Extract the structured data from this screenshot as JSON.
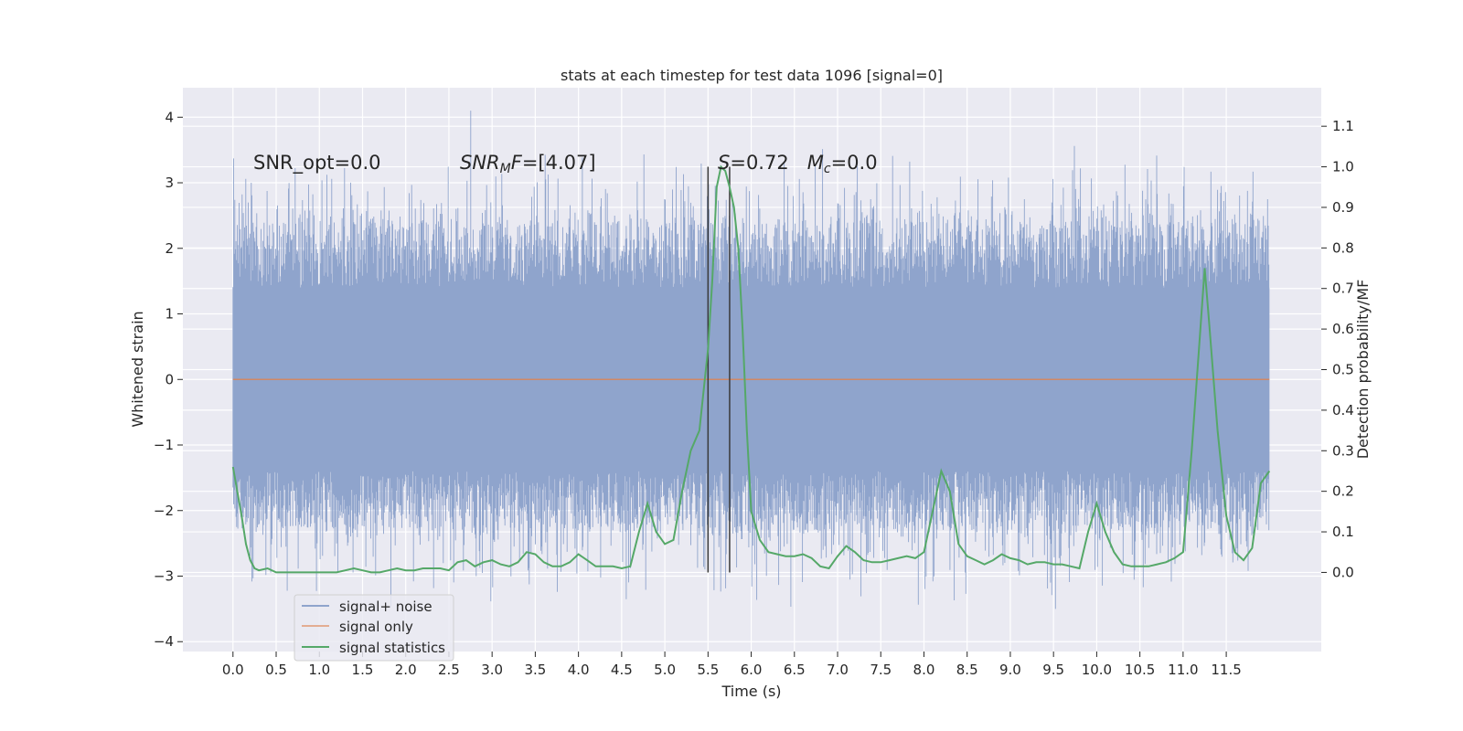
{
  "chart_data": {
    "type": "line",
    "title": "stats at each timestep for test data 1096 [signal=0]",
    "xlabel": "Time (s)",
    "ylabel_left": "Whitened strain",
    "ylabel_right": "Detection probability/MF",
    "xlim": [
      -0.58,
      12.6
    ],
    "ylim_left": [
      -4.15,
      4.45
    ],
    "ylim_right": [
      -0.195,
      1.195
    ],
    "x_ticks": [
      0,
      0.5,
      1,
      1.5,
      2,
      2.5,
      3,
      3.5,
      4,
      4.5,
      5,
      5.5,
      6,
      6.5,
      7,
      7.5,
      8,
      8.5,
      9,
      9.5,
      10,
      10.5,
      11,
      11.5
    ],
    "x_tick_labels": [
      "0.0",
      "0.5",
      "1.0",
      "1.5",
      "2.0",
      "2.5",
      "3.0",
      "3.5",
      "4.0",
      "4.5",
      "5.0",
      "5.5",
      "6.0",
      "6.5",
      "7.0",
      "7.5",
      "8.0",
      "8.5",
      "9.0",
      "9.5",
      "10.0",
      "10.5",
      "11.0",
      "11.5"
    ],
    "y_ticks_left": [
      4,
      3,
      2,
      1,
      0,
      -1,
      -2,
      -3,
      -4
    ],
    "y_tick_labels_left": [
      "4",
      "3",
      "2",
      "1",
      "0",
      "−1",
      "−2",
      "−3",
      "−4"
    ],
    "y_ticks_right": [
      1.1,
      1.0,
      0.9,
      0.8,
      0.7,
      0.6,
      0.5,
      0.4,
      0.3,
      0.2,
      0.1,
      0.0
    ],
    "y_tick_labels_right": [
      "1.1",
      "1.0",
      "0.9",
      "0.8",
      "0.7",
      "0.6",
      "0.5",
      "0.4",
      "0.3",
      "0.2",
      "0.1",
      "0.0"
    ],
    "grid": true,
    "legend_position": "lower-left",
    "series": [
      {
        "name": "signal+ noise",
        "axis": "left",
        "color": "#8fa4cc",
        "kind": "noise-band",
        "x_range": [
          0,
          12.0
        ],
        "core_band": [
          -1.4,
          1.4
        ],
        "typical_peak": [
          -2.3,
          2.4
        ],
        "extrema": {
          "max": 4.1,
          "max_at": 2.75,
          "min": -3.5,
          "min_at": 9.52
        }
      },
      {
        "name": "signal only",
        "axis": "left",
        "color": "#dd8452",
        "x": [
          0,
          12.0
        ],
        "values": [
          0,
          0
        ]
      },
      {
        "name": "signal statistics",
        "axis": "right",
        "color": "#55a868",
        "x": [
          0,
          0.1,
          0.15,
          0.2,
          0.25,
          0.3,
          0.4,
          0.5,
          0.6,
          0.7,
          0.8,
          0.9,
          1.0,
          1.1,
          1.2,
          1.3,
          1.4,
          1.5,
          1.6,
          1.7,
          1.8,
          1.9,
          2.0,
          2.1,
          2.2,
          2.3,
          2.4,
          2.5,
          2.6,
          2.7,
          2.8,
          2.9,
          3.0,
          3.1,
          3.2,
          3.3,
          3.4,
          3.5,
          3.6,
          3.7,
          3.8,
          3.9,
          4.0,
          4.1,
          4.2,
          4.3,
          4.4,
          4.5,
          4.6,
          4.7,
          4.8,
          4.9,
          5.0,
          5.1,
          5.2,
          5.3,
          5.4,
          5.5,
          5.55,
          5.6,
          5.65,
          5.7,
          5.75,
          5.8,
          5.85,
          5.9,
          5.95,
          6.0,
          6.1,
          6.2,
          6.3,
          6.4,
          6.5,
          6.6,
          6.7,
          6.8,
          6.9,
          7.0,
          7.1,
          7.2,
          7.3,
          7.4,
          7.5,
          7.6,
          7.7,
          7.8,
          7.9,
          8.0,
          8.1,
          8.2,
          8.3,
          8.4,
          8.5,
          8.6,
          8.7,
          8.8,
          8.9,
          9.0,
          9.1,
          9.2,
          9.3,
          9.4,
          9.5,
          9.6,
          9.7,
          9.8,
          9.9,
          10.0,
          10.1,
          10.2,
          10.3,
          10.4,
          10.5,
          10.6,
          10.7,
          10.8,
          10.9,
          11.0,
          11.1,
          11.2,
          11.25,
          11.3,
          11.4,
          11.5,
          11.6,
          11.7,
          11.8,
          11.9,
          12.0
        ],
        "values": [
          0.26,
          0.14,
          0.07,
          0.03,
          0.01,
          0.005,
          0.01,
          0.0,
          0.0,
          0.0,
          0.0,
          0.0,
          0.0,
          0.0,
          0.0,
          0.005,
          0.01,
          0.005,
          0.0,
          0.0,
          0.005,
          0.01,
          0.005,
          0.005,
          0.01,
          0.01,
          0.01,
          0.005,
          0.025,
          0.03,
          0.015,
          0.025,
          0.03,
          0.02,
          0.015,
          0.025,
          0.05,
          0.045,
          0.025,
          0.015,
          0.015,
          0.025,
          0.045,
          0.03,
          0.015,
          0.015,
          0.015,
          0.01,
          0.015,
          0.1,
          0.17,
          0.1,
          0.07,
          0.08,
          0.2,
          0.3,
          0.35,
          0.55,
          0.72,
          0.95,
          1.0,
          0.99,
          0.95,
          0.9,
          0.8,
          0.6,
          0.35,
          0.15,
          0.08,
          0.05,
          0.045,
          0.04,
          0.04,
          0.045,
          0.035,
          0.015,
          0.01,
          0.04,
          0.065,
          0.05,
          0.03,
          0.025,
          0.025,
          0.03,
          0.035,
          0.04,
          0.035,
          0.05,
          0.15,
          0.25,
          0.2,
          0.07,
          0.04,
          0.03,
          0.02,
          0.03,
          0.045,
          0.035,
          0.03,
          0.02,
          0.025,
          0.025,
          0.02,
          0.02,
          0.015,
          0.01,
          0.1,
          0.17,
          0.1,
          0.05,
          0.02,
          0.015,
          0.015,
          0.015,
          0.02,
          0.025,
          0.035,
          0.05,
          0.3,
          0.6,
          0.75,
          0.62,
          0.35,
          0.14,
          0.05,
          0.03,
          0.06,
          0.22,
          0.25
        ]
      }
    ],
    "vlines": {
      "color": "#3a3a3a",
      "x": [
        5.5,
        5.75
      ],
      "y_range_right": [
        0.0,
        1.0
      ]
    },
    "annotations": [
      {
        "parts": [
          {
            "t": "SNR_opt=0.0",
            "style": "normal"
          }
        ]
      },
      {
        "parts": [
          {
            "t": "SNR",
            "style": "italic"
          },
          {
            "t": "M",
            "style": "italic-sub"
          },
          {
            "t": "F",
            "style": "italic"
          },
          {
            "t": "=[4.07]",
            "style": "normal"
          }
        ]
      },
      {
        "parts": [
          {
            "t": "S",
            "style": "italic"
          },
          {
            "t": "=0.72   ",
            "style": "normal"
          },
          {
            "t": "M",
            "style": "italic"
          },
          {
            "t": "c",
            "style": "italic-sub"
          },
          {
            "t": "=0.0",
            "style": "normal"
          }
        ]
      }
    ]
  }
}
